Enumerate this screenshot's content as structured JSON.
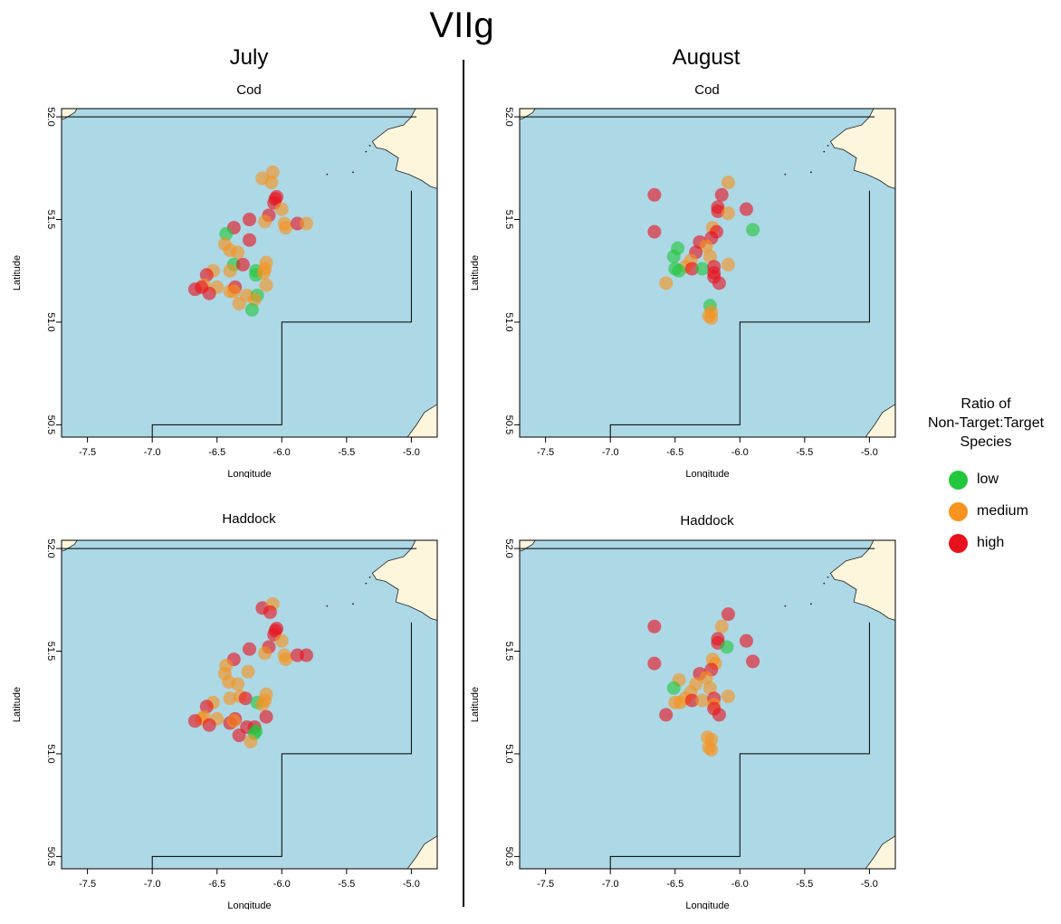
{
  "title": "VIIg",
  "columns": [
    "July",
    "August"
  ],
  "legend": {
    "title_lines": [
      "Ratio of",
      "Non-Target:Target",
      "Species"
    ],
    "items": [
      {
        "label": "low",
        "color": "#22c63c"
      },
      {
        "label": "medium",
        "color": "#f7931e"
      },
      {
        "label": "high",
        "color": "#e8121e"
      }
    ]
  },
  "colors": {
    "sea": "#add8e6",
    "land": "#fdf5dc",
    "divider": "#000000"
  },
  "axes": {
    "xlabel": "Longitude",
    "ylabel": "Latitude",
    "xlim": [
      -7.7,
      -4.8
    ],
    "ylim": [
      50.44,
      52.04
    ],
    "xticks": [
      -7.5,
      -7.0,
      -6.5,
      -6.0,
      -5.5,
      -5.0
    ],
    "xtick_labels": [
      "-7.5",
      "-7.0",
      "-6.5",
      "-6.0",
      "-5.5",
      "-5.0"
    ],
    "yticks": [
      50.5,
      51.0,
      51.5,
      52.0
    ],
    "ytick_labels": [
      "50.5",
      "51.0",
      "51.5",
      "52.0"
    ]
  },
  "chart_data": [
    {
      "type": "scatter",
      "title": "Cod",
      "month": "July",
      "points": [
        {
          "lon": -6.05,
          "lat": 51.6,
          "level": "high"
        },
        {
          "lon": -6.04,
          "lat": 51.61,
          "level": "high"
        },
        {
          "lon": -6.06,
          "lat": 51.58,
          "level": "high"
        },
        {
          "lon": -6.15,
          "lat": 51.7,
          "level": "medium"
        },
        {
          "lon": -6.07,
          "lat": 51.73,
          "level": "medium"
        },
        {
          "lon": -6.08,
          "lat": 51.68,
          "level": "medium"
        },
        {
          "lon": -6.0,
          "lat": 51.55,
          "level": "medium"
        },
        {
          "lon": -6.1,
          "lat": 51.52,
          "level": "high"
        },
        {
          "lon": -6.13,
          "lat": 51.49,
          "level": "medium"
        },
        {
          "lon": -5.98,
          "lat": 51.48,
          "level": "medium"
        },
        {
          "lon": -5.97,
          "lat": 51.46,
          "level": "medium"
        },
        {
          "lon": -5.88,
          "lat": 51.48,
          "level": "high"
        },
        {
          "lon": -5.81,
          "lat": 51.48,
          "level": "medium"
        },
        {
          "lon": -6.25,
          "lat": 51.5,
          "level": "high"
        },
        {
          "lon": -6.37,
          "lat": 51.46,
          "level": "high"
        },
        {
          "lon": -6.43,
          "lat": 51.43,
          "level": "low"
        },
        {
          "lon": -6.44,
          "lat": 51.38,
          "level": "medium"
        },
        {
          "lon": -6.4,
          "lat": 51.35,
          "level": "medium"
        },
        {
          "lon": -6.34,
          "lat": 51.34,
          "level": "medium"
        },
        {
          "lon": -6.25,
          "lat": 51.4,
          "level": "high"
        },
        {
          "lon": -6.37,
          "lat": 51.28,
          "level": "low"
        },
        {
          "lon": -6.4,
          "lat": 51.25,
          "level": "medium"
        },
        {
          "lon": -6.3,
          "lat": 51.28,
          "level": "high"
        },
        {
          "lon": -6.2,
          "lat": 51.25,
          "level": "low"
        },
        {
          "lon": -6.2,
          "lat": 51.23,
          "level": "low"
        },
        {
          "lon": -6.12,
          "lat": 51.29,
          "level": "medium"
        },
        {
          "lon": -6.13,
          "lat": 51.26,
          "level": "medium"
        },
        {
          "lon": -6.14,
          "lat": 51.24,
          "level": "medium"
        },
        {
          "lon": -6.12,
          "lat": 51.18,
          "level": "medium"
        },
        {
          "lon": -6.53,
          "lat": 51.25,
          "level": "medium"
        },
        {
          "lon": -6.58,
          "lat": 51.23,
          "level": "high"
        },
        {
          "lon": -6.5,
          "lat": 51.17,
          "level": "medium"
        },
        {
          "lon": -6.6,
          "lat": 51.18,
          "level": "medium"
        },
        {
          "lon": -6.62,
          "lat": 51.17,
          "level": "high"
        },
        {
          "lon": -6.67,
          "lat": 51.16,
          "level": "high"
        },
        {
          "lon": -6.56,
          "lat": 51.14,
          "level": "high"
        },
        {
          "lon": -6.4,
          "lat": 51.15,
          "level": "medium"
        },
        {
          "lon": -6.36,
          "lat": 51.17,
          "level": "high"
        },
        {
          "lon": -6.37,
          "lat": 51.15,
          "level": "medium"
        },
        {
          "lon": -6.27,
          "lat": 51.13,
          "level": "medium"
        },
        {
          "lon": -6.19,
          "lat": 51.13,
          "level": "low"
        },
        {
          "lon": -6.21,
          "lat": 51.11,
          "level": "medium"
        },
        {
          "lon": -6.33,
          "lat": 51.09,
          "level": "medium"
        },
        {
          "lon": -6.23,
          "lat": 51.06,
          "level": "low"
        }
      ]
    },
    {
      "type": "scatter",
      "title": "Cod",
      "month": "August",
      "points": [
        {
          "lon": -6.66,
          "lat": 51.62,
          "level": "high"
        },
        {
          "lon": -6.09,
          "lat": 51.68,
          "level": "medium"
        },
        {
          "lon": -6.14,
          "lat": 51.62,
          "level": "high"
        },
        {
          "lon": -6.17,
          "lat": 51.56,
          "level": "high"
        },
        {
          "lon": -6.17,
          "lat": 51.54,
          "level": "high"
        },
        {
          "lon": -6.09,
          "lat": 51.53,
          "level": "medium"
        },
        {
          "lon": -5.95,
          "lat": 51.55,
          "level": "high"
        },
        {
          "lon": -5.9,
          "lat": 51.45,
          "level": "low"
        },
        {
          "lon": -6.66,
          "lat": 51.44,
          "level": "high"
        },
        {
          "lon": -6.21,
          "lat": 51.46,
          "level": "medium"
        },
        {
          "lon": -6.18,
          "lat": 51.44,
          "level": "high"
        },
        {
          "lon": -6.22,
          "lat": 51.41,
          "level": "high"
        },
        {
          "lon": -6.31,
          "lat": 51.39,
          "level": "high"
        },
        {
          "lon": -6.26,
          "lat": 51.37,
          "level": "medium"
        },
        {
          "lon": -6.34,
          "lat": 51.34,
          "level": "high"
        },
        {
          "lon": -6.48,
          "lat": 51.36,
          "level": "low"
        },
        {
          "lon": -6.51,
          "lat": 51.32,
          "level": "low"
        },
        {
          "lon": -6.23,
          "lat": 51.32,
          "level": "medium"
        },
        {
          "lon": -6.38,
          "lat": 51.3,
          "level": "medium"
        },
        {
          "lon": -6.42,
          "lat": 51.27,
          "level": "medium"
        },
        {
          "lon": -6.5,
          "lat": 51.26,
          "level": "low"
        },
        {
          "lon": -6.47,
          "lat": 51.25,
          "level": "low"
        },
        {
          "lon": -6.37,
          "lat": 51.26,
          "level": "high"
        },
        {
          "lon": -6.29,
          "lat": 51.26,
          "level": "low"
        },
        {
          "lon": -6.2,
          "lat": 51.27,
          "level": "high"
        },
        {
          "lon": -6.09,
          "lat": 51.28,
          "level": "medium"
        },
        {
          "lon": -6.2,
          "lat": 51.24,
          "level": "high"
        },
        {
          "lon": -6.2,
          "lat": 51.22,
          "level": "high"
        },
        {
          "lon": -6.16,
          "lat": 51.19,
          "level": "high"
        },
        {
          "lon": -6.57,
          "lat": 51.19,
          "level": "medium"
        },
        {
          "lon": -6.23,
          "lat": 51.08,
          "level": "low"
        },
        {
          "lon": -6.22,
          "lat": 51.05,
          "level": "medium"
        },
        {
          "lon": -6.24,
          "lat": 51.03,
          "level": "medium"
        },
        {
          "lon": -6.22,
          "lat": 51.02,
          "level": "medium"
        }
      ]
    },
    {
      "type": "scatter",
      "title": "Haddock",
      "month": "July",
      "points": [
        {
          "lon": -6.05,
          "lat": 51.6,
          "level": "high"
        },
        {
          "lon": -6.04,
          "lat": 51.61,
          "level": "high"
        },
        {
          "lon": -6.06,
          "lat": 51.58,
          "level": "high"
        },
        {
          "lon": -6.15,
          "lat": 51.71,
          "level": "high"
        },
        {
          "lon": -6.07,
          "lat": 51.73,
          "level": "medium"
        },
        {
          "lon": -6.09,
          "lat": 51.69,
          "level": "high"
        },
        {
          "lon": -6.0,
          "lat": 51.55,
          "level": "medium"
        },
        {
          "lon": -6.1,
          "lat": 51.52,
          "level": "high"
        },
        {
          "lon": -6.13,
          "lat": 51.49,
          "level": "medium"
        },
        {
          "lon": -5.98,
          "lat": 51.48,
          "level": "medium"
        },
        {
          "lon": -5.97,
          "lat": 51.46,
          "level": "medium"
        },
        {
          "lon": -5.88,
          "lat": 51.48,
          "level": "high"
        },
        {
          "lon": -5.81,
          "lat": 51.48,
          "level": "high"
        },
        {
          "lon": -6.25,
          "lat": 51.51,
          "level": "high"
        },
        {
          "lon": -6.37,
          "lat": 51.46,
          "level": "high"
        },
        {
          "lon": -6.43,
          "lat": 51.43,
          "level": "medium"
        },
        {
          "lon": -6.44,
          "lat": 51.39,
          "level": "medium"
        },
        {
          "lon": -6.41,
          "lat": 51.35,
          "level": "medium"
        },
        {
          "lon": -6.34,
          "lat": 51.34,
          "level": "medium"
        },
        {
          "lon": -6.26,
          "lat": 51.4,
          "level": "medium"
        },
        {
          "lon": -6.4,
          "lat": 51.27,
          "level": "medium"
        },
        {
          "lon": -6.32,
          "lat": 51.28,
          "level": "medium"
        },
        {
          "lon": -6.28,
          "lat": 51.27,
          "level": "high"
        },
        {
          "lon": -6.19,
          "lat": 51.25,
          "level": "low"
        },
        {
          "lon": -6.12,
          "lat": 51.29,
          "level": "medium"
        },
        {
          "lon": -6.13,
          "lat": 51.26,
          "level": "medium"
        },
        {
          "lon": -6.15,
          "lat": 51.24,
          "level": "medium"
        },
        {
          "lon": -6.12,
          "lat": 51.18,
          "level": "high"
        },
        {
          "lon": -6.53,
          "lat": 51.25,
          "level": "medium"
        },
        {
          "lon": -6.58,
          "lat": 51.23,
          "level": "high"
        },
        {
          "lon": -6.5,
          "lat": 51.17,
          "level": "medium"
        },
        {
          "lon": -6.6,
          "lat": 51.18,
          "level": "medium"
        },
        {
          "lon": -6.62,
          "lat": 51.17,
          "level": "medium"
        },
        {
          "lon": -6.67,
          "lat": 51.16,
          "level": "high"
        },
        {
          "lon": -6.56,
          "lat": 51.14,
          "level": "high"
        },
        {
          "lon": -6.4,
          "lat": 51.15,
          "level": "high"
        },
        {
          "lon": -6.36,
          "lat": 51.17,
          "level": "high"
        },
        {
          "lon": -6.37,
          "lat": 51.16,
          "level": "medium"
        },
        {
          "lon": -6.27,
          "lat": 51.13,
          "level": "high"
        },
        {
          "lon": -6.21,
          "lat": 51.13,
          "level": "high"
        },
        {
          "lon": -6.2,
          "lat": 51.11,
          "level": "low"
        },
        {
          "lon": -6.21,
          "lat": 51.1,
          "level": "low"
        },
        {
          "lon": -6.33,
          "lat": 51.09,
          "level": "high"
        },
        {
          "lon": -6.24,
          "lat": 51.06,
          "level": "medium"
        }
      ]
    },
    {
      "type": "scatter",
      "title": "Haddock",
      "month": "August",
      "points": [
        {
          "lon": -6.66,
          "lat": 51.62,
          "level": "high"
        },
        {
          "lon": -6.09,
          "lat": 51.68,
          "level": "high"
        },
        {
          "lon": -6.14,
          "lat": 51.62,
          "level": "medium"
        },
        {
          "lon": -6.17,
          "lat": 51.56,
          "level": "high"
        },
        {
          "lon": -6.17,
          "lat": 51.54,
          "level": "high"
        },
        {
          "lon": -6.1,
          "lat": 51.52,
          "level": "low"
        },
        {
          "lon": -5.95,
          "lat": 51.55,
          "level": "high"
        },
        {
          "lon": -5.9,
          "lat": 51.45,
          "level": "high"
        },
        {
          "lon": -6.66,
          "lat": 51.44,
          "level": "high"
        },
        {
          "lon": -6.21,
          "lat": 51.46,
          "level": "medium"
        },
        {
          "lon": -6.19,
          "lat": 51.44,
          "level": "medium"
        },
        {
          "lon": -6.22,
          "lat": 51.41,
          "level": "high"
        },
        {
          "lon": -6.31,
          "lat": 51.39,
          "level": "high"
        },
        {
          "lon": -6.26,
          "lat": 51.37,
          "level": "medium"
        },
        {
          "lon": -6.34,
          "lat": 51.34,
          "level": "medium"
        },
        {
          "lon": -6.47,
          "lat": 51.36,
          "level": "medium"
        },
        {
          "lon": -6.51,
          "lat": 51.32,
          "level": "low"
        },
        {
          "lon": -6.23,
          "lat": 51.32,
          "level": "medium"
        },
        {
          "lon": -6.38,
          "lat": 51.3,
          "level": "medium"
        },
        {
          "lon": -6.42,
          "lat": 51.27,
          "level": "medium"
        },
        {
          "lon": -6.5,
          "lat": 51.25,
          "level": "medium"
        },
        {
          "lon": -6.46,
          "lat": 51.25,
          "level": "medium"
        },
        {
          "lon": -6.37,
          "lat": 51.26,
          "level": "high"
        },
        {
          "lon": -6.29,
          "lat": 51.26,
          "level": "medium"
        },
        {
          "lon": -6.2,
          "lat": 51.27,
          "level": "high"
        },
        {
          "lon": -6.09,
          "lat": 51.28,
          "level": "medium"
        },
        {
          "lon": -6.2,
          "lat": 51.24,
          "level": "medium"
        },
        {
          "lon": -6.2,
          "lat": 51.22,
          "level": "high"
        },
        {
          "lon": -6.16,
          "lat": 51.19,
          "level": "high"
        },
        {
          "lon": -6.57,
          "lat": 51.19,
          "level": "high"
        },
        {
          "lon": -6.25,
          "lat": 51.08,
          "level": "medium"
        },
        {
          "lon": -6.22,
          "lat": 51.07,
          "level": "medium"
        },
        {
          "lon": -6.24,
          "lat": 51.03,
          "level": "medium"
        },
        {
          "lon": -6.22,
          "lat": 51.02,
          "level": "medium"
        }
      ]
    }
  ]
}
